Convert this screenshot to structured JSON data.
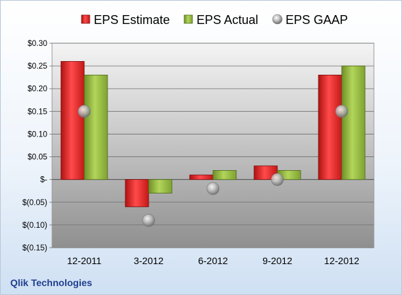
{
  "chart_data": {
    "type": "bar",
    "categories": [
      "12-2011",
      "3-2012",
      "6-2012",
      "9-2012",
      "12-2012"
    ],
    "series": [
      {
        "name": "EPS Estimate",
        "kind": "bar",
        "color": "#e02020",
        "values": [
          0.26,
          -0.06,
          0.01,
          0.03,
          0.23
        ]
      },
      {
        "name": "EPS Actual",
        "kind": "bar",
        "color": "#8fb43a",
        "values": [
          0.23,
          -0.03,
          0.02,
          0.02,
          0.25
        ]
      },
      {
        "name": "EPS GAAP",
        "kind": "marker",
        "color": "#9a9a9a",
        "values": [
          0.15,
          -0.09,
          -0.02,
          0.0,
          0.15
        ]
      }
    ],
    "ylim": [
      -0.15,
      0.3
    ],
    "yticks": [
      0.3,
      0.25,
      0.2,
      0.15,
      0.1,
      0.05,
      0,
      -0.05,
      -0.1,
      -0.15
    ],
    "ytick_labels": [
      "$0.30",
      "$0.25",
      "$0.20",
      "$0.15",
      "$0.10",
      "$0.05",
      "$-",
      "$(0.05)",
      "$(0.10)",
      "$(0.15)"
    ],
    "grid": true,
    "legend": "top",
    "footer": "Qlik Technologies"
  }
}
